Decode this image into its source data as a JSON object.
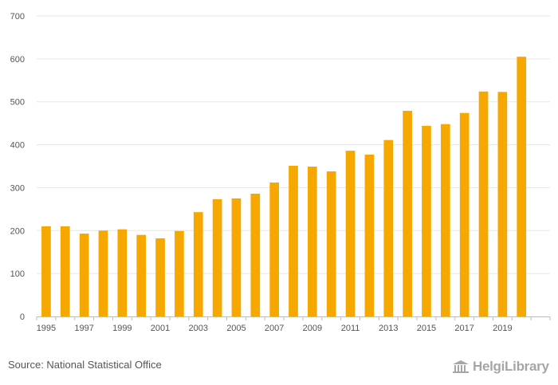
{
  "chart_data": {
    "type": "bar",
    "title": "",
    "xlabel": "",
    "ylabel": "",
    "ylim": [
      0,
      700
    ],
    "yticks": [
      0,
      100,
      200,
      300,
      400,
      500,
      600,
      700
    ],
    "categories": [
      "1995",
      "1996",
      "1997",
      "1998",
      "1999",
      "2000",
      "2001",
      "2002",
      "2003",
      "2004",
      "2005",
      "2006",
      "2007",
      "2008",
      "2009",
      "2010",
      "2011",
      "2012",
      "2013",
      "2014",
      "2015",
      "2016",
      "2017",
      "2018",
      "2019",
      "2020",
      "2021"
    ],
    "xtick_labels": [
      "1995",
      "1997",
      "1999",
      "2001",
      "2003",
      "2005",
      "2007",
      "2009",
      "2011",
      "2013",
      "2015",
      "2017",
      "2019"
    ],
    "values": [
      210,
      210,
      193,
      200,
      203,
      190,
      182,
      199,
      243,
      273,
      275,
      286,
      312,
      351,
      349,
      338,
      386,
      377,
      411,
      479,
      444,
      448,
      474,
      524,
      523,
      605,
      0
    ],
    "bar_color": "#f7a800",
    "grid": true
  },
  "footer": {
    "source": "Source: National Statistical Office",
    "logo_text": "HelgiLibrary"
  }
}
